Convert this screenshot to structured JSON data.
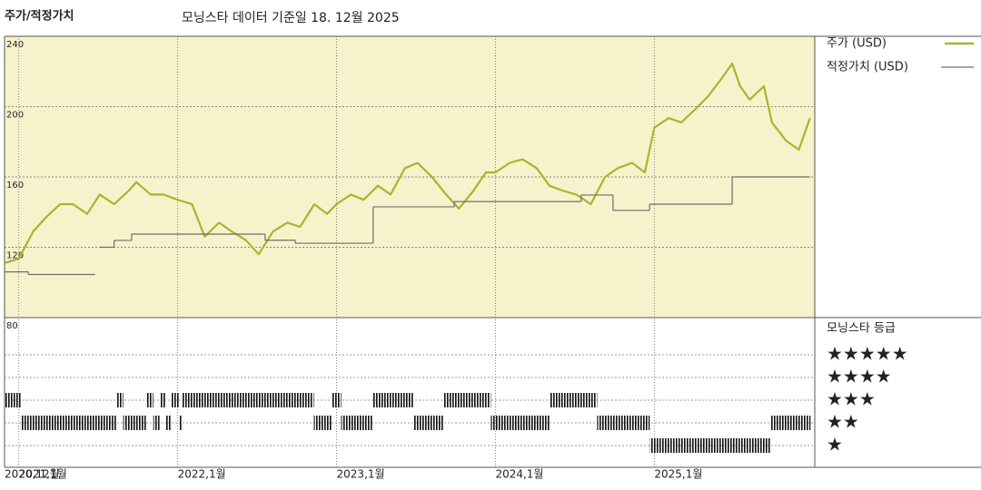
{
  "chart_data": {
    "type": "line",
    "title": "주가/적정가치",
    "subtitle": "모닝스타 데이터 기준일 18. 12월 2025",
    "xlim": [
      2020.91,
      2026.01
    ],
    "xticks": [
      {
        "value": 2020.91,
        "label": "2020,12월"
      },
      {
        "value": 2021,
        "label": "2021,1월"
      },
      {
        "value": 2022,
        "label": "2022,1월"
      },
      {
        "value": 2023,
        "label": "2023,1월"
      },
      {
        "value": 2024,
        "label": "2024,1월"
      },
      {
        "value": 2025,
        "label": "2025,1월"
      }
    ],
    "ylim": [
      80,
      240
    ],
    "yticks": [
      80,
      120,
      160,
      200,
      240
    ],
    "grid": true,
    "background": "#f7f2cc",
    "series": [
      {
        "name": "주가 (USD)",
        "color": "#a9b52b",
        "x": [
          2020.91,
          2021.0,
          2021.09,
          2021.17,
          2021.26,
          2021.34,
          2021.43,
          2021.51,
          2021.6,
          2021.69,
          2021.74,
          2021.83,
          2021.91,
          2022.0,
          2022.09,
          2022.17,
          2022.26,
          2022.34,
          2022.43,
          2022.51,
          2022.6,
          2022.69,
          2022.77,
          2022.86,
          2022.94,
          2023.0,
          2023.09,
          2023.17,
          2023.26,
          2023.34,
          2023.43,
          2023.51,
          2023.6,
          2023.69,
          2023.77,
          2023.86,
          2023.94,
          2024.0,
          2024.09,
          2024.17,
          2024.26,
          2024.34,
          2024.43,
          2024.51,
          2024.6,
          2024.69,
          2024.77,
          2024.86,
          2024.94,
          2025.0,
          2025.09,
          2025.17,
          2025.26,
          2025.34,
          2025.43,
          2025.49,
          2025.54,
          2025.6,
          2025.69,
          2025.74,
          2025.83,
          2025.91,
          2025.98
        ],
        "values": [
          111,
          113.5,
          129,
          137,
          144.5,
          144.5,
          139,
          150,
          144.5,
          152,
          157,
          150,
          150,
          147,
          144.5,
          126,
          134,
          129,
          124,
          116,
          129,
          134,
          131.6,
          144.5,
          139,
          144.5,
          150,
          147,
          155,
          150,
          165,
          168,
          160,
          150,
          142,
          152,
          162.6,
          162.6,
          168,
          170,
          165,
          155,
          152,
          150,
          144.5,
          160,
          165,
          168,
          162.6,
          188,
          193.5,
          191,
          198.7,
          206,
          216.8,
          224.5,
          211.6,
          204,
          211.6,
          191,
          180.6,
          175.5,
          193.5
        ]
      },
      {
        "name": "적정가치 (USD)",
        "color": "#6e6e6e",
        "step": true,
        "x": [
          2020.91,
          2021.06,
          2021.48,
          2021.51,
          2021.6,
          2021.71,
          2022.55,
          2022.74,
          2023.23,
          2023.74,
          2024.54,
          2024.74,
          2024.97,
          2025.49,
          2025.98
        ],
        "values": [
          106,
          104.5,
          null,
          120,
          123.9,
          127.5,
          124,
          122.3,
          143,
          146,
          149.7,
          141,
          144.5,
          160,
          160
        ]
      }
    ],
    "rating": {
      "title": "모닝스타 등급",
      "levels": [
        5,
        4,
        3,
        2,
        1
      ],
      "labels": [
        "★★★★★",
        "★★★★",
        "★★★",
        "★★",
        "★"
      ],
      "bins": [
        2020.914,
        2021.011,
        2021.617,
        2021.657,
        2021.8,
        2021.846,
        2021.886,
        2021.926,
        2021.96,
        2022.011,
        2022.029,
        2022.857,
        2022.971,
        2023.029,
        2023.229,
        2023.486,
        2023.674,
        2023.971,
        2024.343,
        2024.64,
        2024.971,
        2025.731,
        2025.983
      ],
      "values": [
        3,
        2,
        3,
        2,
        3,
        2,
        3,
        2,
        3,
        2,
        3,
        2,
        3,
        2,
        3,
        2,
        3,
        2,
        3,
        2,
        1,
        2
      ],
      "color": "#111111"
    }
  }
}
